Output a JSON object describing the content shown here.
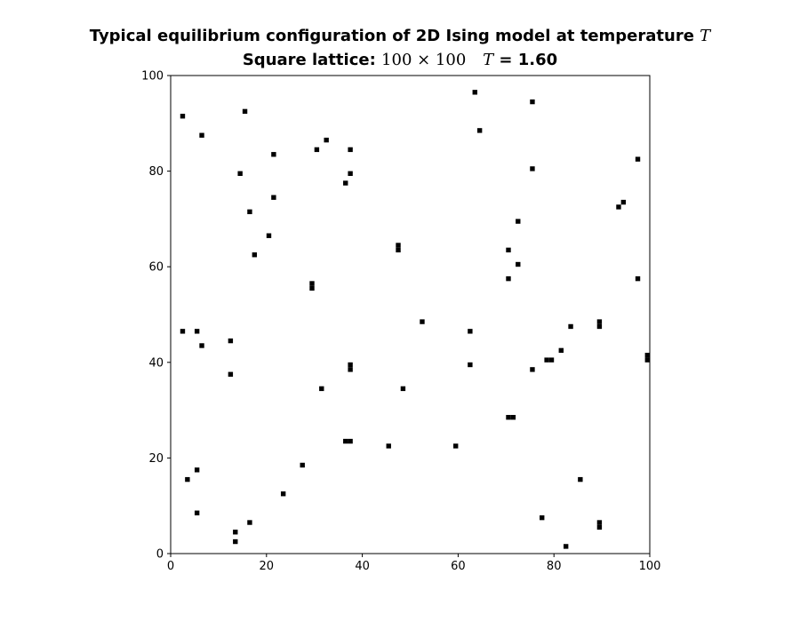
{
  "title": {
    "line1_text": "Typical equilibrium configuration of 2D Ising model at temperature ",
    "line1_symbol": "T",
    "line2_label": "Square lattice: ",
    "line2_size": "100 × 100",
    "line2_T_symbol": "T",
    "line2_T_value": " = 1.60"
  },
  "chart_data": {
    "type": "heatmap",
    "description_colors": {
      "spin_up": "#ffffff",
      "spin_down": "#000000"
    },
    "lattice_size": [
      100,
      100
    ],
    "temperature": 1.6,
    "xlim": [
      0,
      100
    ],
    "ylim": [
      0,
      100
    ],
    "xticks": [
      0,
      20,
      40,
      60,
      80,
      100
    ],
    "yticks": [
      0,
      20,
      40,
      60,
      80,
      100
    ],
    "grid": false,
    "flipped_spin_cells": [
      [
        2,
        91
      ],
      [
        15,
        92
      ],
      [
        6,
        87
      ],
      [
        63,
        96
      ],
      [
        75,
        94
      ],
      [
        64,
        88
      ],
      [
        32,
        86
      ],
      [
        30,
        84
      ],
      [
        37,
        84
      ],
      [
        21,
        83
      ],
      [
        75,
        80
      ],
      [
        97,
        82
      ],
      [
        14,
        79
      ],
      [
        37,
        79
      ],
      [
        36,
        77
      ],
      [
        21,
        74
      ],
      [
        93,
        72
      ],
      [
        94,
        73
      ],
      [
        16,
        71
      ],
      [
        72,
        69
      ],
      [
        20,
        66
      ],
      [
        47,
        64
      ],
      [
        47,
        63
      ],
      [
        70,
        63
      ],
      [
        17,
        62
      ],
      [
        72,
        60
      ],
      [
        29,
        56
      ],
      [
        29,
        55
      ],
      [
        70,
        57
      ],
      [
        97,
        57
      ],
      [
        52,
        48
      ],
      [
        2,
        46
      ],
      [
        5,
        46
      ],
      [
        62,
        46
      ],
      [
        83,
        47
      ],
      [
        89,
        48
      ],
      [
        89,
        47
      ],
      [
        12,
        44
      ],
      [
        6,
        43
      ],
      [
        81,
        42
      ],
      [
        78,
        40
      ],
      [
        79,
        40
      ],
      [
        99,
        41
      ],
      [
        99,
        40
      ],
      [
        37,
        39
      ],
      [
        37,
        38
      ],
      [
        62,
        39
      ],
      [
        75,
        38
      ],
      [
        12,
        37
      ],
      [
        31,
        34
      ],
      [
        48,
        34
      ],
      [
        70,
        28
      ],
      [
        71,
        28
      ],
      [
        36,
        23
      ],
      [
        37,
        23
      ],
      [
        45,
        22
      ],
      [
        59,
        22
      ],
      [
        27,
        18
      ],
      [
        5,
        17
      ],
      [
        3,
        15
      ],
      [
        85,
        15
      ],
      [
        23,
        12
      ],
      [
        5,
        8
      ],
      [
        77,
        7
      ],
      [
        16,
        6
      ],
      [
        89,
        6
      ],
      [
        89,
        5
      ],
      [
        13,
        4
      ],
      [
        13,
        2
      ],
      [
        82,
        1
      ]
    ]
  }
}
